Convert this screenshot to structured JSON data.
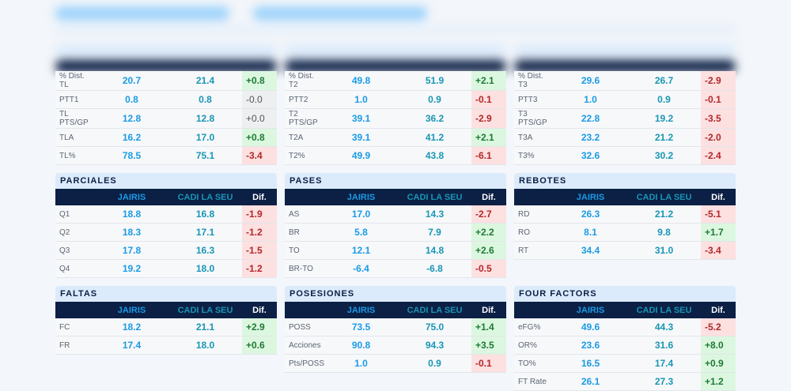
{
  "tables": [
    {
      "title": "",
      "headers": [
        "",
        "",
        "",
        ""
      ],
      "rows": [
        [
          "% Dist. TL",
          "20.7",
          "21.4",
          "+0.8"
        ],
        [
          "PTT1",
          "0.8",
          "0.8",
          "-0.0"
        ],
        [
          "TL PTS/GP",
          "12.8",
          "12.8",
          "+0.0"
        ],
        [
          "TLA",
          "16.2",
          "17.0",
          "+0.8"
        ],
        [
          "TL%",
          "78.5",
          "75.1",
          "-3.4"
        ]
      ]
    },
    {
      "title": "",
      "headers": [
        "",
        "",
        "",
        ""
      ],
      "rows": [
        [
          "% Dist. T2",
          "49.8",
          "51.9",
          "+2.1"
        ],
        [
          "PTT2",
          "1.0",
          "0.9",
          "-0.1"
        ],
        [
          "T2 PTS/GP",
          "39.1",
          "36.2",
          "-2.9"
        ],
        [
          "T2A",
          "39.1",
          "41.2",
          "+2.1"
        ],
        [
          "T2%",
          "49.9",
          "43.8",
          "-6.1"
        ]
      ]
    },
    {
      "title": "",
      "headers": [
        "",
        "",
        "",
        ""
      ],
      "rows": [
        [
          "% Dist. T3",
          "29.6",
          "26.7",
          "-2.9"
        ],
        [
          "PTT3",
          "1.0",
          "0.9",
          "-0.1"
        ],
        [
          "T3 PTS/GP",
          "22.8",
          "19.2",
          "-3.5"
        ],
        [
          "T3A",
          "23.2",
          "21.2",
          "-2.0"
        ],
        [
          "T3%",
          "32.6",
          "30.2",
          "-2.4"
        ]
      ]
    },
    {
      "title": "PARCIALES",
      "headers": [
        "",
        "JAIRIS",
        "CADI LA SEU",
        "Dif."
      ],
      "rows": [
        [
          "Q1",
          "18.8",
          "16.8",
          "-1.9"
        ],
        [
          "Q2",
          "18.3",
          "17.1",
          "-1.2"
        ],
        [
          "Q3",
          "17.8",
          "16.3",
          "-1.5"
        ],
        [
          "Q4",
          "19.2",
          "18.0",
          "-1.2"
        ]
      ]
    },
    {
      "title": "PASES",
      "headers": [
        "",
        "JAIRIS",
        "CADI LA SEU",
        "Dif."
      ],
      "rows": [
        [
          "AS",
          "17.0",
          "14.3",
          "-2.7"
        ],
        [
          "BR",
          "5.8",
          "7.9",
          "+2.2"
        ],
        [
          "TO",
          "12.1",
          "14.8",
          "+2.6"
        ],
        [
          "BR-TO",
          "-6.4",
          "-6.8",
          "-0.5"
        ]
      ]
    },
    {
      "title": "REBOTES",
      "headers": [
        "",
        "JAIRIS",
        "CADI LA SEU",
        "Dif."
      ],
      "rows": [
        [
          "RD",
          "26.3",
          "21.2",
          "-5.1"
        ],
        [
          "RO",
          "8.1",
          "9.8",
          "+1.7"
        ],
        [
          "RT",
          "34.4",
          "31.0",
          "-3.4"
        ]
      ]
    },
    {
      "title": "FALTAS",
      "headers": [
        "",
        "JAIRIS",
        "CADI LA SEU",
        "Dif."
      ],
      "rows": [
        [
          "FC",
          "18.2",
          "21.1",
          "+2.9"
        ],
        [
          "FR",
          "17.4",
          "18.0",
          "+0.6"
        ]
      ]
    },
    {
      "title": "POSESIONES",
      "headers": [
        "",
        "JAIRIS",
        "CADI LA SEU",
        "Dif."
      ],
      "rows": [
        [
          "POSS",
          "73.5",
          "75.0",
          "+1.4"
        ],
        [
          "Acciones",
          "90.8",
          "94.3",
          "+3.5"
        ],
        [
          "Pts/POSS",
          "1.0",
          "0.9",
          "-0.1"
        ]
      ]
    },
    {
      "title": "FOUR FACTORS",
      "headers": [
        "",
        "JAIRIS",
        "CADI LA SEU",
        "Dif."
      ],
      "rows": [
        [
          "eFG%",
          "49.6",
          "44.3",
          "-5.2"
        ],
        [
          "OR%",
          "23.6",
          "31.6",
          "+8.0"
        ],
        [
          "TO%",
          "16.5",
          "17.4",
          "+0.9"
        ],
        [
          "FT Rate",
          "26.1",
          "27.3",
          "+1.2"
        ]
      ]
    }
  ],
  "colors": {
    "header_bg": "#0c1f45",
    "team1": "#1a9be6",
    "team2": "#1896b4",
    "positive_bg": "#dcf7e0",
    "negative_bg": "#fde0e0"
  }
}
